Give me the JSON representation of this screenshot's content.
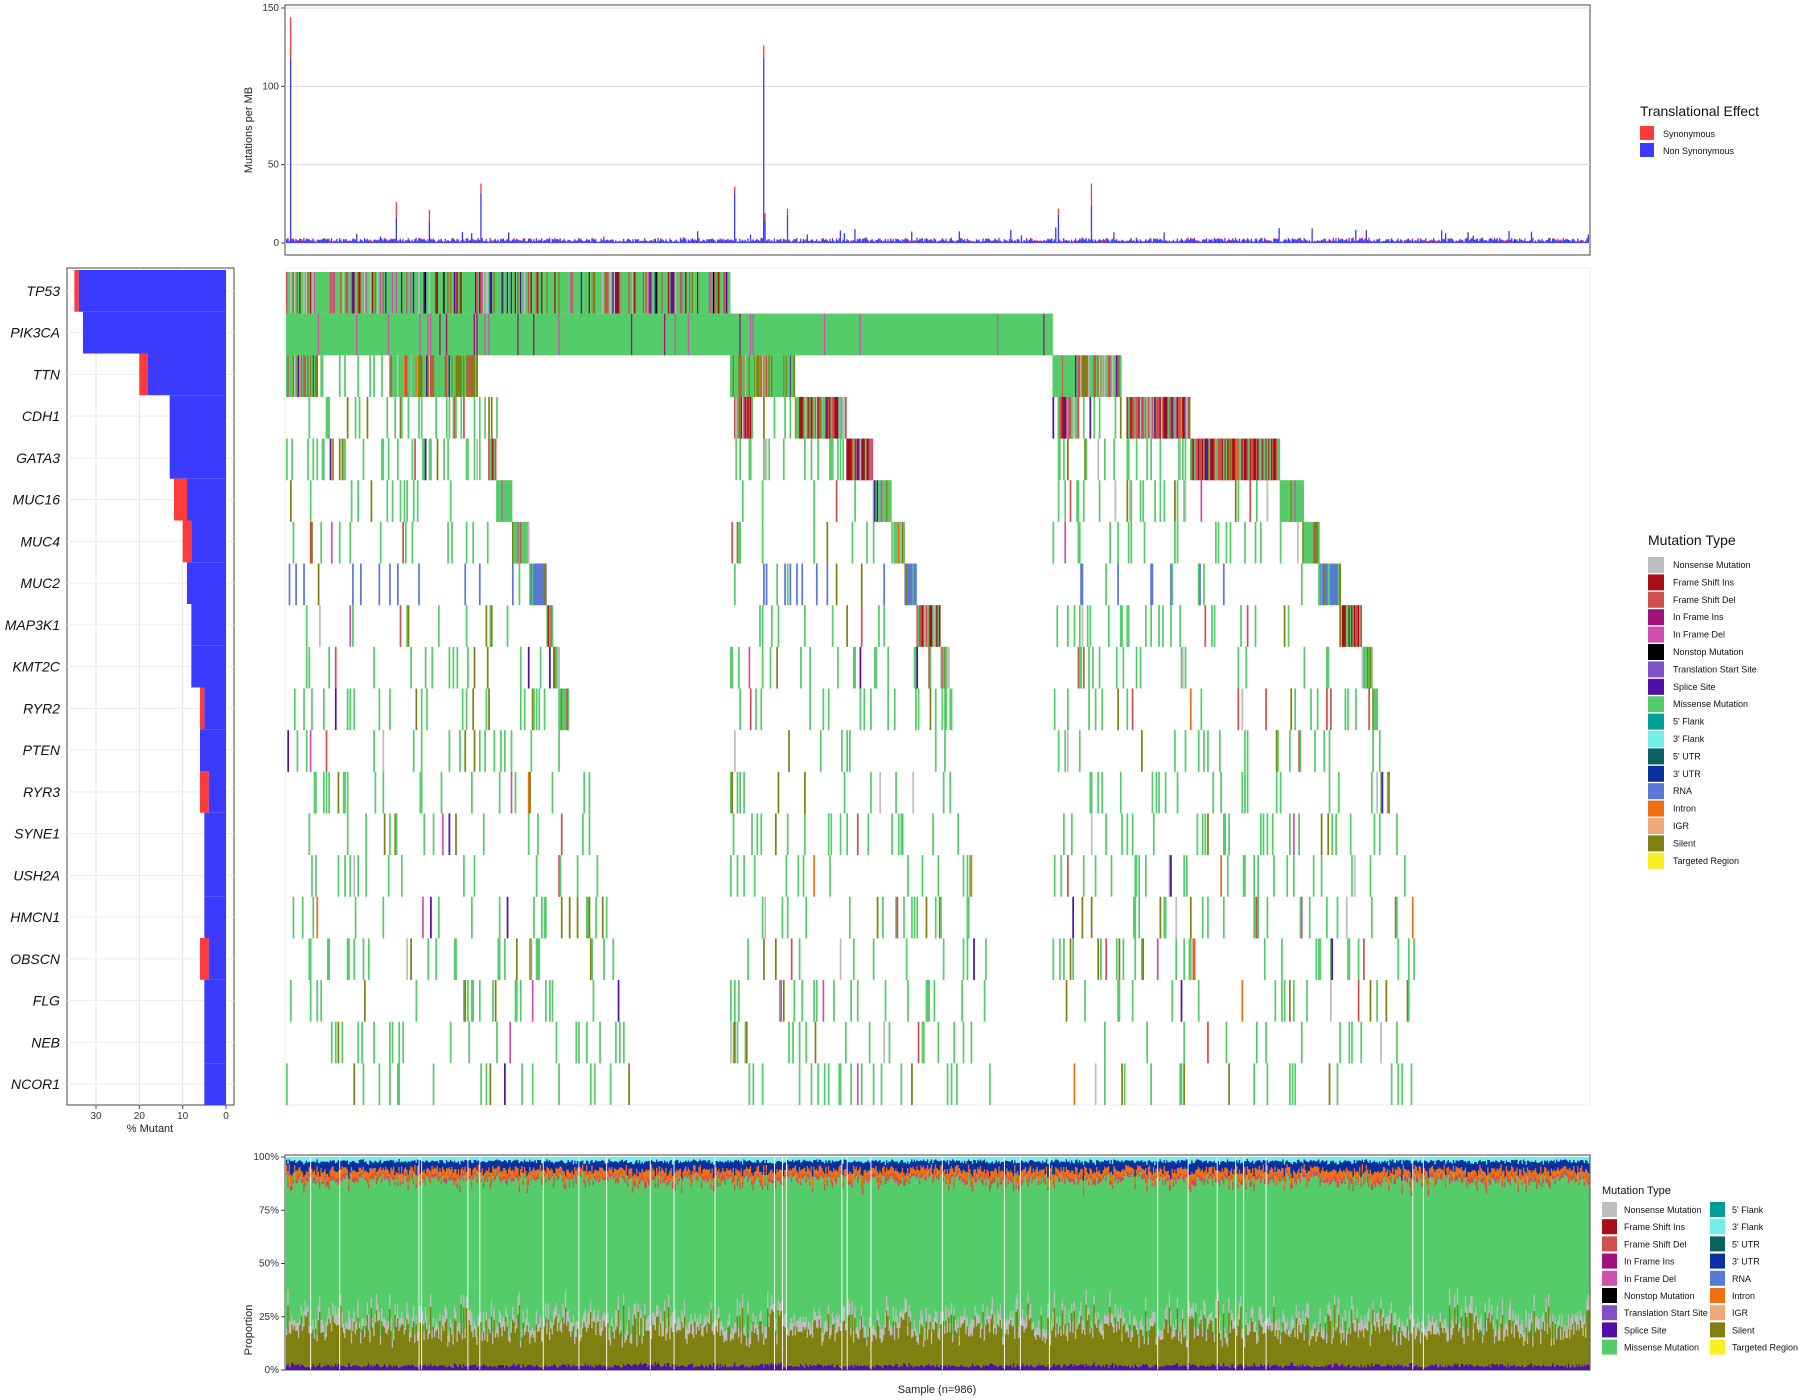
{
  "colors": {
    "synonymous": "#FF3B3B",
    "non_synonymous": "#3B3BFF",
    "gridline": "#D9D9D9",
    "panel_border": "#444444"
  },
  "mutation_types": [
    {
      "name": "Nonsense Mutation",
      "color": "#BDBDBD"
    },
    {
      "name": "Frame Shift Ins",
      "color": "#A50F15"
    },
    {
      "name": "Frame Shift Del",
      "color": "#D05050"
    },
    {
      "name": "In Frame Ins",
      "color": "#A0117A"
    },
    {
      "name": "In Frame Del",
      "color": "#D050B0"
    },
    {
      "name": "Nonstop Mutation",
      "color": "#000000"
    },
    {
      "name": "Translation Start Site",
      "color": "#8050C8"
    },
    {
      "name": "Splice Site",
      "color": "#5010A8"
    },
    {
      "name": "Missense Mutation",
      "color": "#55CC6A"
    },
    {
      "name": "5' Flank",
      "color": "#009E99"
    },
    {
      "name": "3' Flank",
      "color": "#70F0E8"
    },
    {
      "name": "5' UTR",
      "color": "#0B6060"
    },
    {
      "name": "3' UTR",
      "color": "#0A2FA0"
    },
    {
      "name": "RNA",
      "color": "#5A78D8"
    },
    {
      "name": "Intron",
      "color": "#F07010"
    },
    {
      "name": "IGR",
      "color": "#F0A878"
    },
    {
      "name": "Silent",
      "color": "#808010"
    },
    {
      "name": "Targeted Region",
      "color": "#F8F020"
    }
  ],
  "chart_data": [
    {
      "id": "burden",
      "type": "bar",
      "ylabel": "Mutations per MB",
      "ylim": [
        0,
        150
      ],
      "yticks": [
        0,
        50,
        100,
        150
      ],
      "n_samples": 986,
      "stacked": true,
      "series": [
        {
          "name": "Synonymous",
          "color": "#FF3B3B"
        },
        {
          "name": "Non Synonymous",
          "color": "#3B3BFF"
        }
      ],
      "legend_title": "Translational Effect",
      "legend_position": "right",
      "peaks": [
        {
          "sample": 3,
          "synonymous": 26,
          "non_synonymous": 118
        },
        {
          "sample": 83,
          "synonymous": 10,
          "non_synonymous": 16
        },
        {
          "sample": 108,
          "synonymous": 7,
          "non_synonymous": 14
        },
        {
          "sample": 147,
          "synonymous": 6,
          "non_synonymous": 32
        },
        {
          "sample": 339,
          "synonymous": 4,
          "non_synonymous": 32
        },
        {
          "sample": 362,
          "synonymous": 5,
          "non_synonymous": 14
        },
        {
          "sample": 361,
          "synonymous": 8,
          "non_synonymous": 118
        },
        {
          "sample": 379,
          "synonymous": 4,
          "non_synonymous": 18
        },
        {
          "sample": 584,
          "synonymous": 4,
          "non_synonymous": 18
        },
        {
          "sample": 609,
          "synonymous": 14,
          "non_synonymous": 24
        }
      ]
    },
    {
      "id": "gene_frequency",
      "type": "bar",
      "orientation": "horizontal",
      "xlabel": "% Mutant",
      "xlim": [
        0,
        36
      ],
      "xticks": [
        0,
        10,
        20,
        30
      ],
      "x_reversed": true,
      "categories": [
        "TP53",
        "PIK3CA",
        "TTN",
        "CDH1",
        "GATA3",
        "MUC16",
        "MUC4",
        "MUC2",
        "MAP3K1",
        "KMT2C",
        "RYR2",
        "PTEN",
        "RYR3",
        "SYNE1",
        "USH2A",
        "HMCN1",
        "OBSCN",
        "FLG",
        "NEB",
        "NCOR1"
      ],
      "series": [
        {
          "name": "Non Synonymous",
          "values": [
            34,
            33,
            18,
            13,
            13,
            9,
            8,
            9,
            8,
            8,
            5,
            6,
            4,
            5,
            5,
            5,
            4,
            5,
            5,
            5
          ]
        },
        {
          "name": "Synonymous",
          "values": [
            1,
            0,
            2,
            0,
            0,
            3,
            2,
            0,
            0,
            0,
            1,
            0,
            2,
            0,
            0,
            0,
            2,
            0,
            0,
            0
          ]
        }
      ]
    },
    {
      "id": "waterfall",
      "type": "heatmap",
      "n_samples": 986,
      "genes": [
        "TP53",
        "PIK3CA",
        "TTN",
        "CDH1",
        "GATA3",
        "MUC16",
        "MUC4",
        "MUC2",
        "MAP3K1",
        "KMT2C",
        "RYR2",
        "PTEN",
        "RYR3",
        "SYNE1",
        "USH2A",
        "HMCN1",
        "OBSCN",
        "FLG",
        "NEB",
        "NCOR1"
      ],
      "legend_title": "Mutation Type",
      "legend_position": "right"
    },
    {
      "id": "proportion",
      "type": "bar",
      "stacked": true,
      "xlabel": "Sample (n=986)",
      "ylabel": "Proportion",
      "ylim": [
        0,
        1
      ],
      "yticks": [
        "0%",
        "25%",
        "50%",
        "75%",
        "100%"
      ],
      "n_samples": 986,
      "legend_title": "Mutation Type",
      "legend_position": "right",
      "typical_composition": {
        "Splice Site": 0.02,
        "Silent": 0.17,
        "Nonsense Mutation": 0.05,
        "Missense Mutation": 0.65,
        "Frame Shift Del": 0.02,
        "Intron": 0.03,
        "3' UTR": 0.04,
        "3' Flank": 0.02
      }
    }
  ]
}
